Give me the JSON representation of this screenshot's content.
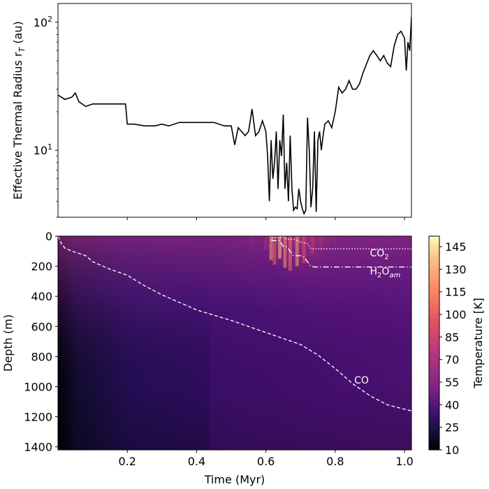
{
  "chart_data": [
    {
      "type": "line",
      "title": "",
      "xlabel": "",
      "ylabel": "Effective Thermal Radius r",
      "ylabel_sub": "T",
      "ylabel_unit": " (au)",
      "yscale": "log",
      "ylim": [
        3.0,
        140
      ],
      "xlim": [
        0.0,
        1.02
      ],
      "y_ticks": [
        {
          "value": 10,
          "base": "10",
          "exp": "1"
        },
        {
          "value": 100,
          "base": "10",
          "exp": "2"
        }
      ],
      "x_ticks": [
        0.2,
        0.4,
        0.6,
        0.8,
        1.0
      ],
      "series": [
        {
          "name": "r_T",
          "color": "#000000",
          "x": [
            0.0,
            0.02,
            0.04,
            0.05,
            0.06,
            0.08,
            0.1,
            0.12,
            0.15,
            0.18,
            0.195,
            0.2,
            0.22,
            0.25,
            0.28,
            0.3,
            0.32,
            0.35,
            0.4,
            0.45,
            0.48,
            0.5,
            0.51,
            0.52,
            0.54,
            0.55,
            0.56,
            0.57,
            0.58,
            0.59,
            0.6,
            0.605,
            0.61,
            0.615,
            0.62,
            0.625,
            0.63,
            0.635,
            0.64,
            0.645,
            0.65,
            0.655,
            0.66,
            0.665,
            0.67,
            0.675,
            0.68,
            0.685,
            0.69,
            0.695,
            0.7,
            0.705,
            0.71,
            0.715,
            0.72,
            0.725,
            0.73,
            0.735,
            0.74,
            0.745,
            0.75,
            0.755,
            0.76,
            0.765,
            0.77,
            0.78,
            0.79,
            0.8,
            0.81,
            0.82,
            0.83,
            0.84,
            0.85,
            0.86,
            0.87,
            0.88,
            0.89,
            0.9,
            0.91,
            0.92,
            0.93,
            0.94,
            0.95,
            0.96,
            0.97,
            0.98,
            0.99,
            1.0,
            1.005,
            1.01,
            1.015,
            1.02
          ],
          "values": [
            27,
            25,
            26,
            28,
            24,
            22,
            23,
            23,
            23,
            23,
            23,
            16,
            16,
            15.5,
            15.5,
            16,
            15.5,
            16.5,
            16.5,
            16.5,
            15.5,
            15.5,
            11,
            15,
            13,
            14,
            21,
            13,
            14,
            17,
            14,
            9,
            4,
            12,
            6,
            8,
            14,
            5,
            12,
            9,
            19,
            5,
            8,
            4,
            13,
            5,
            3.4,
            3.6,
            3.5,
            5,
            4,
            3.5,
            3.2,
            3.4,
            18,
            10,
            3.6,
            5,
            14,
            3.3,
            12,
            14,
            10,
            13,
            16,
            17,
            15,
            20,
            31,
            28,
            30,
            35,
            30,
            30,
            33,
            40,
            47,
            55,
            60,
            55,
            50,
            55,
            48,
            45,
            65,
            80,
            85,
            75,
            42,
            70,
            60,
            110
          ]
        }
      ]
    },
    {
      "type": "heatmap",
      "title": "",
      "xlabel": "Time (Myr)",
      "ylabel": "Depth (m)",
      "xlim": [
        0.0,
        1.02
      ],
      "ylim": [
        1420,
        0
      ],
      "x_ticks": [
        0.2,
        0.4,
        0.6,
        0.8,
        1.0
      ],
      "x_tick_labels": [
        "0.2",
        "0.4",
        "0.6",
        "0.8",
        "1.0"
      ],
      "y_ticks": [
        0,
        200,
        400,
        600,
        800,
        1000,
        1200,
        1400
      ],
      "colormap": "magma",
      "colorbar": {
        "label": "Temperature [K]",
        "range": [
          10,
          152
        ],
        "ticks": [
          10,
          25,
          40,
          55,
          70,
          85,
          100,
          115,
          130,
          145
        ]
      },
      "fronts": [
        {
          "name": "CO",
          "style": "dashed",
          "label_x": 0.855,
          "label_y": 980,
          "x": [
            0.0,
            0.01,
            0.02,
            0.04,
            0.08,
            0.1,
            0.15,
            0.2,
            0.25,
            0.3,
            0.35,
            0.4,
            0.5,
            0.6,
            0.7,
            0.75,
            0.8,
            0.85,
            0.9,
            0.95,
            1.0,
            1.02
          ],
          "depth": [
            0,
            50,
            80,
            100,
            130,
            170,
            220,
            260,
            330,
            390,
            440,
            490,
            560,
            640,
            720,
            790,
            880,
            980,
            1060,
            1120,
            1150,
            1160
          ]
        },
        {
          "name": "CO",
          "name_sub": "2",
          "style": "dotted",
          "label_x": 0.9,
          "label_y": 135,
          "x": [
            0.612,
            0.615,
            0.63,
            0.65,
            0.66,
            0.68,
            0.7,
            0.72,
            0.73,
            0.75,
            1.02
          ],
          "depth": [
            0,
            10,
            10,
            5,
            20,
            20,
            40,
            50,
            85,
            85,
            85
          ]
        },
        {
          "name": "H",
          "name_sub": "2",
          "name_rest": "O",
          "name_sub2": "am",
          "style": "dashdot",
          "label_x": 0.9,
          "label_y": 255,
          "x": [
            0.615,
            0.62,
            0.64,
            0.65,
            0.66,
            0.68,
            0.7,
            0.71,
            0.72,
            0.73,
            0.74,
            0.76,
            1.02
          ],
          "depth": [
            25,
            30,
            30,
            70,
            70,
            130,
            130,
            140,
            170,
            200,
            205,
            205,
            205
          ]
        }
      ]
    }
  ]
}
